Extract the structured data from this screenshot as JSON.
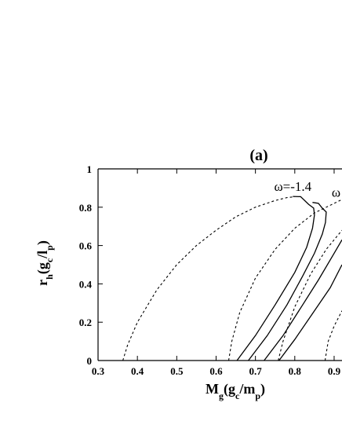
{
  "chart_data": {
    "type": "line",
    "title": "(a)",
    "xlabel": {
      "main": "M",
      "sub1": "g",
      "open": "(g",
      "sub2": "c",
      "mid": "/m",
      "sub3": "p",
      "close": ")"
    },
    "ylabel": {
      "main": "r",
      "sub1": "h",
      "open": "(g",
      "sub2": "c",
      "mid": "/l",
      "sub3": "p",
      "close": ")"
    },
    "xlim": [
      0.3,
      0.92
    ],
    "ylim": [
      0,
      1
    ],
    "x_ticks": [
      "0.3",
      "0.4",
      "0.5",
      "0.6",
      "0.7",
      "0.8",
      "0.9"
    ],
    "y_ticks": [
      "0",
      "0.2",
      "0.4",
      "0.6",
      "0.8",
      "1"
    ],
    "grid": false,
    "annotations": [
      {
        "text": "ω=-1.4",
        "x": 0.795,
        "y": 0.885
      },
      {
        "text": "ω",
        "x": 0.905,
        "y": 0.855
      }
    ],
    "series": [
      {
        "style": "dashed",
        "points": [
          [
            0.363,
            0
          ],
          [
            0.375,
            0.08
          ],
          [
            0.4,
            0.2
          ],
          [
            0.45,
            0.37
          ],
          [
            0.5,
            0.5
          ],
          [
            0.55,
            0.6
          ],
          [
            0.6,
            0.68
          ],
          [
            0.65,
            0.75
          ],
          [
            0.7,
            0.8
          ],
          [
            0.75,
            0.835
          ],
          [
            0.78,
            0.85
          ],
          [
            0.8,
            0.855
          ]
        ]
      },
      {
        "style": "solid",
        "points": [
          [
            0.653,
            0
          ],
          [
            0.7,
            0.13
          ],
          [
            0.75,
            0.29
          ],
          [
            0.8,
            0.46
          ],
          [
            0.83,
            0.59
          ],
          [
            0.845,
            0.69
          ],
          [
            0.85,
            0.76
          ],
          [
            0.848,
            0.795
          ],
          [
            0.835,
            0.815
          ],
          [
            0.815,
            0.855
          ],
          [
            0.795,
            0.856
          ]
        ]
      },
      {
        "style": "dashed",
        "points": [
          [
            0.632,
            0
          ],
          [
            0.64,
            0.1
          ],
          [
            0.66,
            0.25
          ],
          [
            0.7,
            0.43
          ],
          [
            0.75,
            0.58
          ],
          [
            0.8,
            0.69
          ],
          [
            0.85,
            0.77
          ],
          [
            0.9,
            0.82
          ],
          [
            0.92,
            0.84
          ]
        ]
      },
      {
        "style": "solid",
        "points": [
          [
            0.682,
            0
          ],
          [
            0.73,
            0.13
          ],
          [
            0.78,
            0.29
          ],
          [
            0.82,
            0.44
          ],
          [
            0.85,
            0.56
          ],
          [
            0.87,
            0.66
          ],
          [
            0.878,
            0.72
          ],
          [
            0.88,
            0.775
          ],
          [
            0.87,
            0.795
          ],
          [
            0.86,
            0.82
          ],
          [
            0.845,
            0.825
          ]
        ]
      },
      {
        "style": "dashed",
        "points": [
          [
            0.758,
            0
          ],
          [
            0.77,
            0.1
          ],
          [
            0.8,
            0.28
          ],
          [
            0.84,
            0.45
          ],
          [
            0.88,
            0.58
          ],
          [
            0.92,
            0.68
          ]
        ]
      },
      {
        "style": "solid",
        "points": [
          [
            0.722,
            0
          ],
          [
            0.77,
            0.13
          ],
          [
            0.82,
            0.29
          ],
          [
            0.86,
            0.42
          ],
          [
            0.9,
            0.56
          ],
          [
            0.92,
            0.63
          ]
        ]
      },
      {
        "style": "solid",
        "points": [
          [
            0.76,
            0
          ],
          [
            0.8,
            0.11
          ],
          [
            0.85,
            0.26
          ],
          [
            0.89,
            0.38
          ],
          [
            0.92,
            0.5
          ]
        ]
      },
      {
        "style": "dashed",
        "points": [
          [
            0.877,
            0
          ],
          [
            0.885,
            0.1
          ],
          [
            0.9,
            0.18
          ],
          [
            0.92,
            0.26
          ]
        ]
      }
    ]
  }
}
